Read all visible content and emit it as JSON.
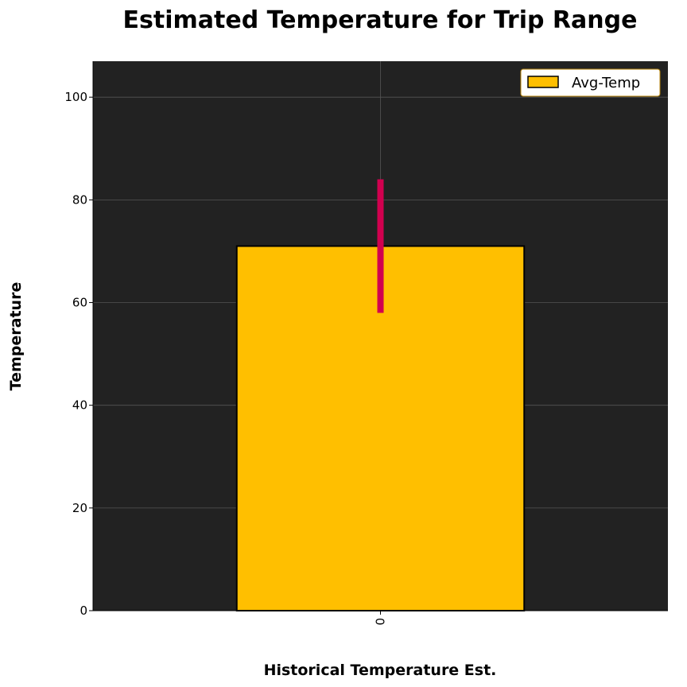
{
  "chart_data": {
    "type": "bar",
    "title": "Estimated Temperature for Trip Range",
    "xlabel": "Historical Temperature Est.",
    "ylabel": "Temperature",
    "categories": [
      "0"
    ],
    "series": [
      {
        "name": "Avg-Temp",
        "values": [
          71.0
        ],
        "error": {
          "low": 58.0,
          "high": 84.0
        }
      }
    ],
    "ylim": [
      0,
      107
    ],
    "yticks": [
      0,
      20,
      40,
      60,
      80,
      100
    ],
    "grid": true,
    "legend_position": "top-right",
    "colors": {
      "bar": "#FFBF00",
      "bar_edge": "#000000",
      "error_bar": "#D1004F",
      "plot_background": "#222222",
      "grid": "#555555",
      "legend_edge": "#B8860B"
    }
  }
}
